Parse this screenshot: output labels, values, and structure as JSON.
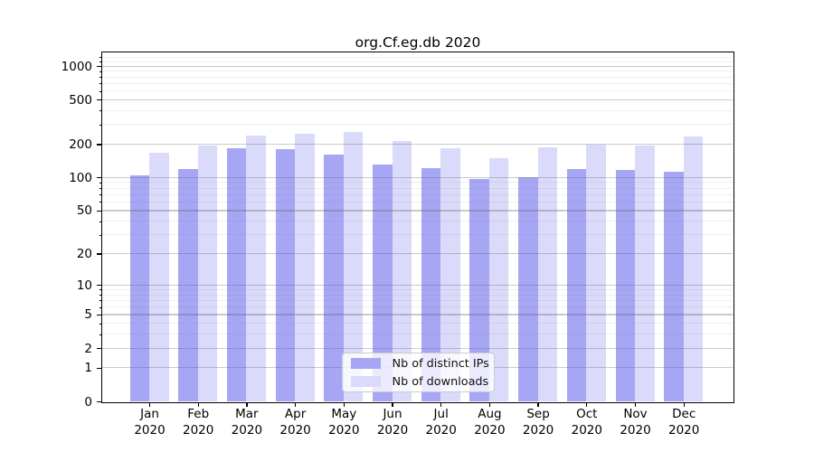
{
  "chart_data": {
    "type": "bar",
    "title": "org.Cf.eg.db 2020",
    "categories": [
      "Jan 2020",
      "Feb 2020",
      "Mar 2020",
      "Apr 2020",
      "May 2020",
      "Jun 2020",
      "Jul 2020",
      "Aug 2020",
      "Sep 2020",
      "Oct 2020",
      "Nov 2020",
      "Dec 2020"
    ],
    "series": [
      {
        "name": "Nb of distinct IPs",
        "color": "#a6a6f4",
        "values": [
          104,
          120,
          185,
          180,
          160,
          131,
          121,
          97,
          101,
          119,
          117,
          112
        ]
      },
      {
        "name": "Nb of downloads",
        "color": "#dadafa",
        "values": [
          167,
          193,
          237,
          248,
          259,
          213,
          184,
          148,
          188,
          197,
          195,
          236
        ]
      }
    ],
    "xlabel": "",
    "ylabel": "",
    "yscale": "log1p",
    "ylim": [
      0,
      1327
    ],
    "yticks": [
      0,
      1,
      2,
      5,
      10,
      20,
      50,
      100,
      200,
      500,
      1000
    ],
    "grid": true,
    "minor_gridlines": true,
    "legend_position": "lower center",
    "colors": {
      "axis": "#000000",
      "major_grid": "#b2b2b2",
      "minor_grid": "#e9e9e9",
      "background": "#ffffff"
    }
  }
}
